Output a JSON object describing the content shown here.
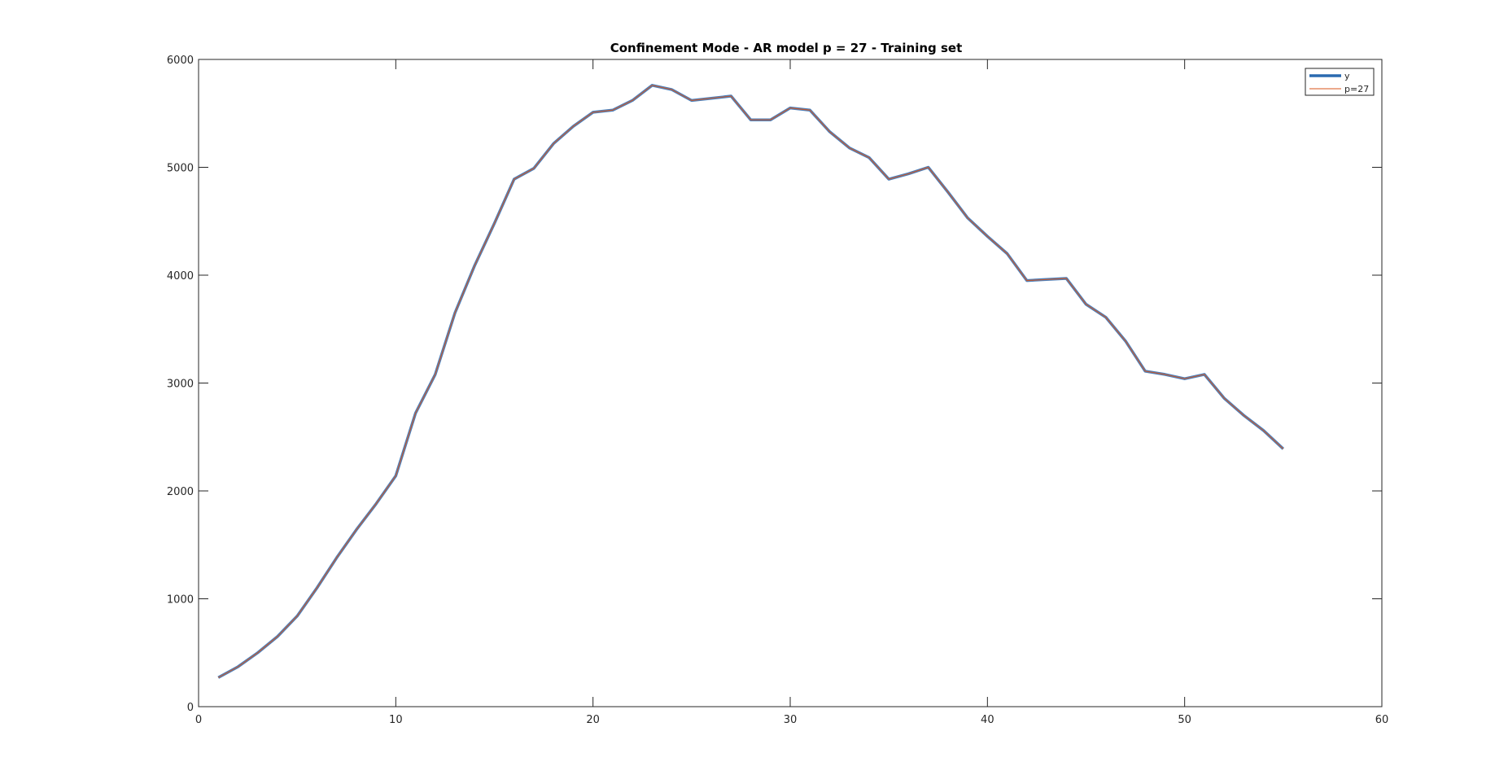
{
  "chart_data": {
    "type": "line",
    "title": "Confinement Mode - AR model p = 27 - Training set",
    "xlabel": "",
    "ylabel": "",
    "xlim": [
      0,
      60
    ],
    "ylim": [
      0,
      6000
    ],
    "xticks": [
      0,
      10,
      20,
      30,
      40,
      50,
      60
    ],
    "yticks": [
      0,
      1000,
      2000,
      3000,
      4000,
      5000,
      6000
    ],
    "xtick_labels": [
      "0",
      "10",
      "20",
      "30",
      "40",
      "50",
      "60"
    ],
    "ytick_labels": [
      "0",
      "1000",
      "2000",
      "3000",
      "4000",
      "5000",
      "6000"
    ],
    "grid": false,
    "legend_position": "top-right",
    "series": [
      {
        "name": "y",
        "color": "#2a6ab0",
        "x": [
          1,
          2,
          3,
          4,
          5,
          6,
          7,
          8,
          9,
          10,
          11,
          12,
          13,
          14,
          15,
          16,
          17,
          18,
          19,
          20,
          21,
          22,
          23,
          24,
          25,
          26,
          27,
          28,
          29,
          30,
          31,
          32,
          33,
          34,
          35,
          36,
          37,
          38,
          39,
          40,
          41,
          42,
          43,
          44,
          45,
          46,
          47,
          48,
          49,
          50,
          51,
          52,
          53,
          54,
          55
        ],
        "values": [
          270,
          370,
          500,
          650,
          840,
          1100,
          1380,
          1640,
          1880,
          2140,
          2720,
          3080,
          3650,
          4090,
          4480,
          4890,
          4990,
          5220,
          5380,
          5510,
          5530,
          5620,
          5760,
          5720,
          5620,
          5640,
          5660,
          5440,
          5440,
          5550,
          5530,
          5330,
          5180,
          5090,
          4890,
          4940,
          5000,
          4770,
          4530,
          4360,
          4200,
          3950,
          3960,
          3970,
          3730,
          3610,
          3390,
          3110,
          3080,
          3040,
          3080,
          2860,
          2700,
          2560,
          2390
        ]
      },
      {
        "name": "p=27",
        "color": "#d95319",
        "x": [
          1,
          2,
          3,
          4,
          5,
          6,
          7,
          8,
          9,
          10,
          11,
          12,
          13,
          14,
          15,
          16,
          17,
          18,
          19,
          20,
          21,
          22,
          23,
          24,
          25,
          26,
          27,
          28,
          29,
          30,
          31,
          32,
          33,
          34,
          35,
          36,
          37,
          38,
          39,
          40,
          41,
          42,
          43,
          44,
          45,
          46,
          47,
          48,
          49,
          50,
          51,
          52,
          53,
          54,
          55
        ],
        "values": [
          270,
          370,
          500,
          650,
          840,
          1100,
          1380,
          1640,
          1880,
          2140,
          2720,
          3080,
          3650,
          4090,
          4480,
          4890,
          4990,
          5220,
          5380,
          5510,
          5530,
          5620,
          5760,
          5720,
          5620,
          5640,
          5660,
          5440,
          5440,
          5550,
          5530,
          5330,
          5180,
          5090,
          4890,
          4940,
          5000,
          4770,
          4530,
          4360,
          4200,
          3950,
          3960,
          3970,
          3730,
          3610,
          3390,
          3110,
          3080,
          3040,
          3080,
          2860,
          2700,
          2560,
          2390
        ]
      }
    ]
  }
}
